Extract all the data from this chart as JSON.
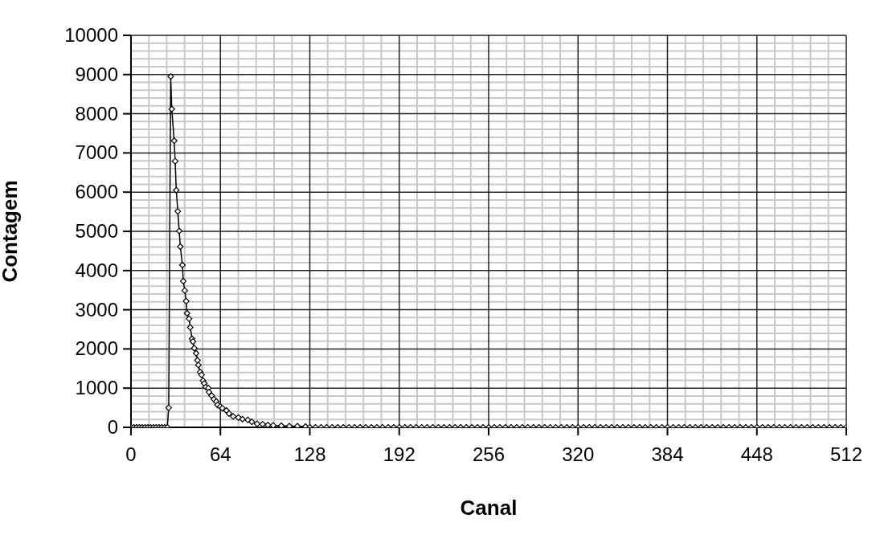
{
  "chart_data": {
    "type": "line",
    "xlabel": "Canal",
    "ylabel": "Contagem",
    "grid": true,
    "marker": "diamond",
    "line_style": "solid",
    "xlim": [
      0,
      512
    ],
    "ylim": [
      0,
      10000
    ],
    "xticks": [
      0,
      64,
      128,
      192,
      256,
      320,
      384,
      448,
      512,
      {
        "value": 12.8,
        "label": null
      },
      {
        "value": 25.6,
        "label": null
      },
      {
        "value": 38.4,
        "label": null
      },
      {
        "value": 51.2,
        "label": null
      },
      {
        "value": 76.8,
        "label": null
      },
      {
        "value": 89.6,
        "label": null
      },
      {
        "value": 102.4,
        "label": null
      },
      {
        "value": 115.2,
        "label": null
      },
      {
        "value": 140.8,
        "label": null
      },
      {
        "value": 153.6,
        "label": null
      },
      {
        "value": 166.4,
        "label": null
      },
      {
        "value": 179.2,
        "label": null
      },
      {
        "value": 204.8,
        "label": null
      },
      {
        "value": 217.6,
        "label": null
      },
      {
        "value": 230.4,
        "label": null
      },
      {
        "value": 243.2,
        "label": null
      },
      {
        "value": 268.8,
        "label": null
      },
      {
        "value": 281.6,
        "label": null
      },
      {
        "value": 294.4,
        "label": null
      },
      {
        "value": 307.2,
        "label": null
      },
      {
        "value": 332.8,
        "label": null
      },
      {
        "value": 345.6,
        "label": null
      },
      {
        "value": 358.4,
        "label": null
      },
      {
        "value": 371.2,
        "label": null
      },
      {
        "value": 396.8,
        "label": null
      },
      {
        "value": 409.6,
        "label": null
      },
      {
        "value": 422.4,
        "label": null
      },
      {
        "value": 435.2,
        "label": null
      },
      {
        "value": 460.8,
        "label": null
      },
      {
        "value": 473.6,
        "label": null
      },
      {
        "value": 486.4,
        "label": null
      },
      {
        "value": 499.2,
        "label": null
      }
    ],
    "yticks": [
      0,
      1000,
      2000,
      3000,
      4000,
      5000,
      6000,
      7000,
      8000,
      9000,
      10000,
      {
        "value": 200,
        "label": null
      },
      {
        "value": 400,
        "label": null
      },
      {
        "value": 600,
        "label": null
      },
      {
        "value": 800,
        "label": null
      },
      {
        "value": 1200,
        "label": null
      },
      {
        "value": 1400,
        "label": null
      },
      {
        "value": 1600,
        "label": null
      },
      {
        "value": 1800,
        "label": null
      },
      {
        "value": 2200,
        "label": null
      },
      {
        "value": 2400,
        "label": null
      },
      {
        "value": 2600,
        "label": null
      },
      {
        "value": 2800,
        "label": null
      },
      {
        "value": 3200,
        "label": null
      },
      {
        "value": 3400,
        "label": null
      },
      {
        "value": 3600,
        "label": null
      },
      {
        "value": 3800,
        "label": null
      },
      {
        "value": 4200,
        "label": null
      },
      {
        "value": 4400,
        "label": null
      },
      {
        "value": 4600,
        "label": null
      },
      {
        "value": 4800,
        "label": null
      },
      {
        "value": 5200,
        "label": null
      },
      {
        "value": 5400,
        "label": null
      },
      {
        "value": 5600,
        "label": null
      },
      {
        "value": 5800,
        "label": null
      },
      {
        "value": 6200,
        "label": null
      },
      {
        "value": 6400,
        "label": null
      },
      {
        "value": 6600,
        "label": null
      },
      {
        "value": 6800,
        "label": null
      },
      {
        "value": 7200,
        "label": null
      },
      {
        "value": 7400,
        "label": null
      },
      {
        "value": 7600,
        "label": null
      },
      {
        "value": 7800,
        "label": null
      },
      {
        "value": 8200,
        "label": null
      },
      {
        "value": 8400,
        "label": null
      },
      {
        "value": 8600,
        "label": null
      },
      {
        "value": 8800,
        "label": null
      },
      {
        "value": 9200,
        "label": null
      },
      {
        "value": 9400,
        "label": null
      },
      {
        "value": 9600,
        "label": null
      },
      {
        "value": 9800,
        "label": null
      }
    ],
    "series": [
      {
        "color": "#000000",
        "x": [
          0,
          2,
          4,
          6,
          8,
          10,
          12,
          14,
          16,
          18,
          20,
          22,
          24,
          26,
          27,
          28.4,
          29.2,
          30.9,
          31.6,
          32.4,
          33.5,
          34.5,
          35.3,
          36.8,
          37.4,
          38.5,
          39.5,
          40.1,
          41.6,
          42.4,
          43.7,
          44.3,
          45.3,
          46.6,
          47.6,
          48.2,
          49.5,
          50.5,
          51.6,
          52.5,
          53.5,
          55.4,
          55.8,
          57.7,
          59.3,
          61,
          62,
          63.9,
          65.4,
          68.3,
          70.2,
          73.1,
          76.9,
          79.8,
          83.6,
          86.5,
          90.3,
          94.2,
          98,
          101.8,
          107.6,
          113.3,
          119.1,
          124.9,
          128,
          132,
          136,
          140,
          144,
          148,
          152,
          156,
          160,
          164,
          168,
          172,
          176,
          180,
          184,
          188,
          192,
          196,
          200,
          204,
          208,
          212,
          216,
          220,
          224,
          228,
          232,
          236,
          240,
          244,
          248,
          252,
          256,
          260,
          264,
          268,
          272,
          276,
          280,
          284,
          288,
          292,
          296,
          300,
          304,
          308,
          312,
          316,
          320,
          324,
          328,
          332,
          336,
          340,
          344,
          348,
          352,
          356,
          360,
          364,
          368,
          372,
          376,
          380,
          384,
          388,
          392,
          396,
          400,
          404,
          408,
          412,
          416,
          420,
          424,
          428,
          432,
          436,
          440,
          444,
          448,
          452,
          456,
          460,
          464,
          468,
          472,
          476,
          480,
          484,
          488,
          492,
          496,
          500,
          504,
          508,
          512
        ],
        "values": [
          0,
          0,
          0,
          0,
          0,
          0,
          0,
          0,
          0,
          0,
          0,
          0,
          0,
          0,
          500,
          8950,
          8120,
          7310,
          6790,
          6050,
          5510,
          5010,
          4610,
          4140,
          3730,
          3490,
          3220,
          2910,
          2770,
          2550,
          2260,
          2190,
          2020,
          1890,
          1710,
          1590,
          1410,
          1340,
          1190,
          1120,
          1030,
          1000,
          900,
          810,
          720,
          660,
          570,
          530,
          490,
          430,
          350,
          280,
          250,
          210,
          190,
          140,
          90,
          80,
          60,
          50,
          40,
          30,
          30,
          20,
          0,
          0,
          0,
          0,
          0,
          0,
          0,
          0,
          0,
          0,
          0,
          0,
          0,
          0,
          0,
          0,
          0,
          0,
          0,
          0,
          0,
          0,
          0,
          0,
          0,
          0,
          0,
          0,
          0,
          0,
          0,
          0,
          0,
          0,
          0,
          0,
          0,
          0,
          0,
          0,
          0,
          0,
          0,
          0,
          0,
          0,
          0,
          0,
          0,
          0,
          0,
          0,
          0,
          0,
          0,
          0,
          0,
          0,
          0,
          0,
          0,
          0,
          0,
          0,
          0,
          0,
          0,
          0,
          0,
          0,
          0,
          0,
          0,
          0,
          0,
          0,
          0,
          0,
          0,
          0,
          0,
          0,
          0,
          0,
          0,
          0,
          0,
          0,
          0,
          0,
          0,
          0,
          0,
          0,
          0,
          0,
          0
        ]
      }
    ]
  }
}
